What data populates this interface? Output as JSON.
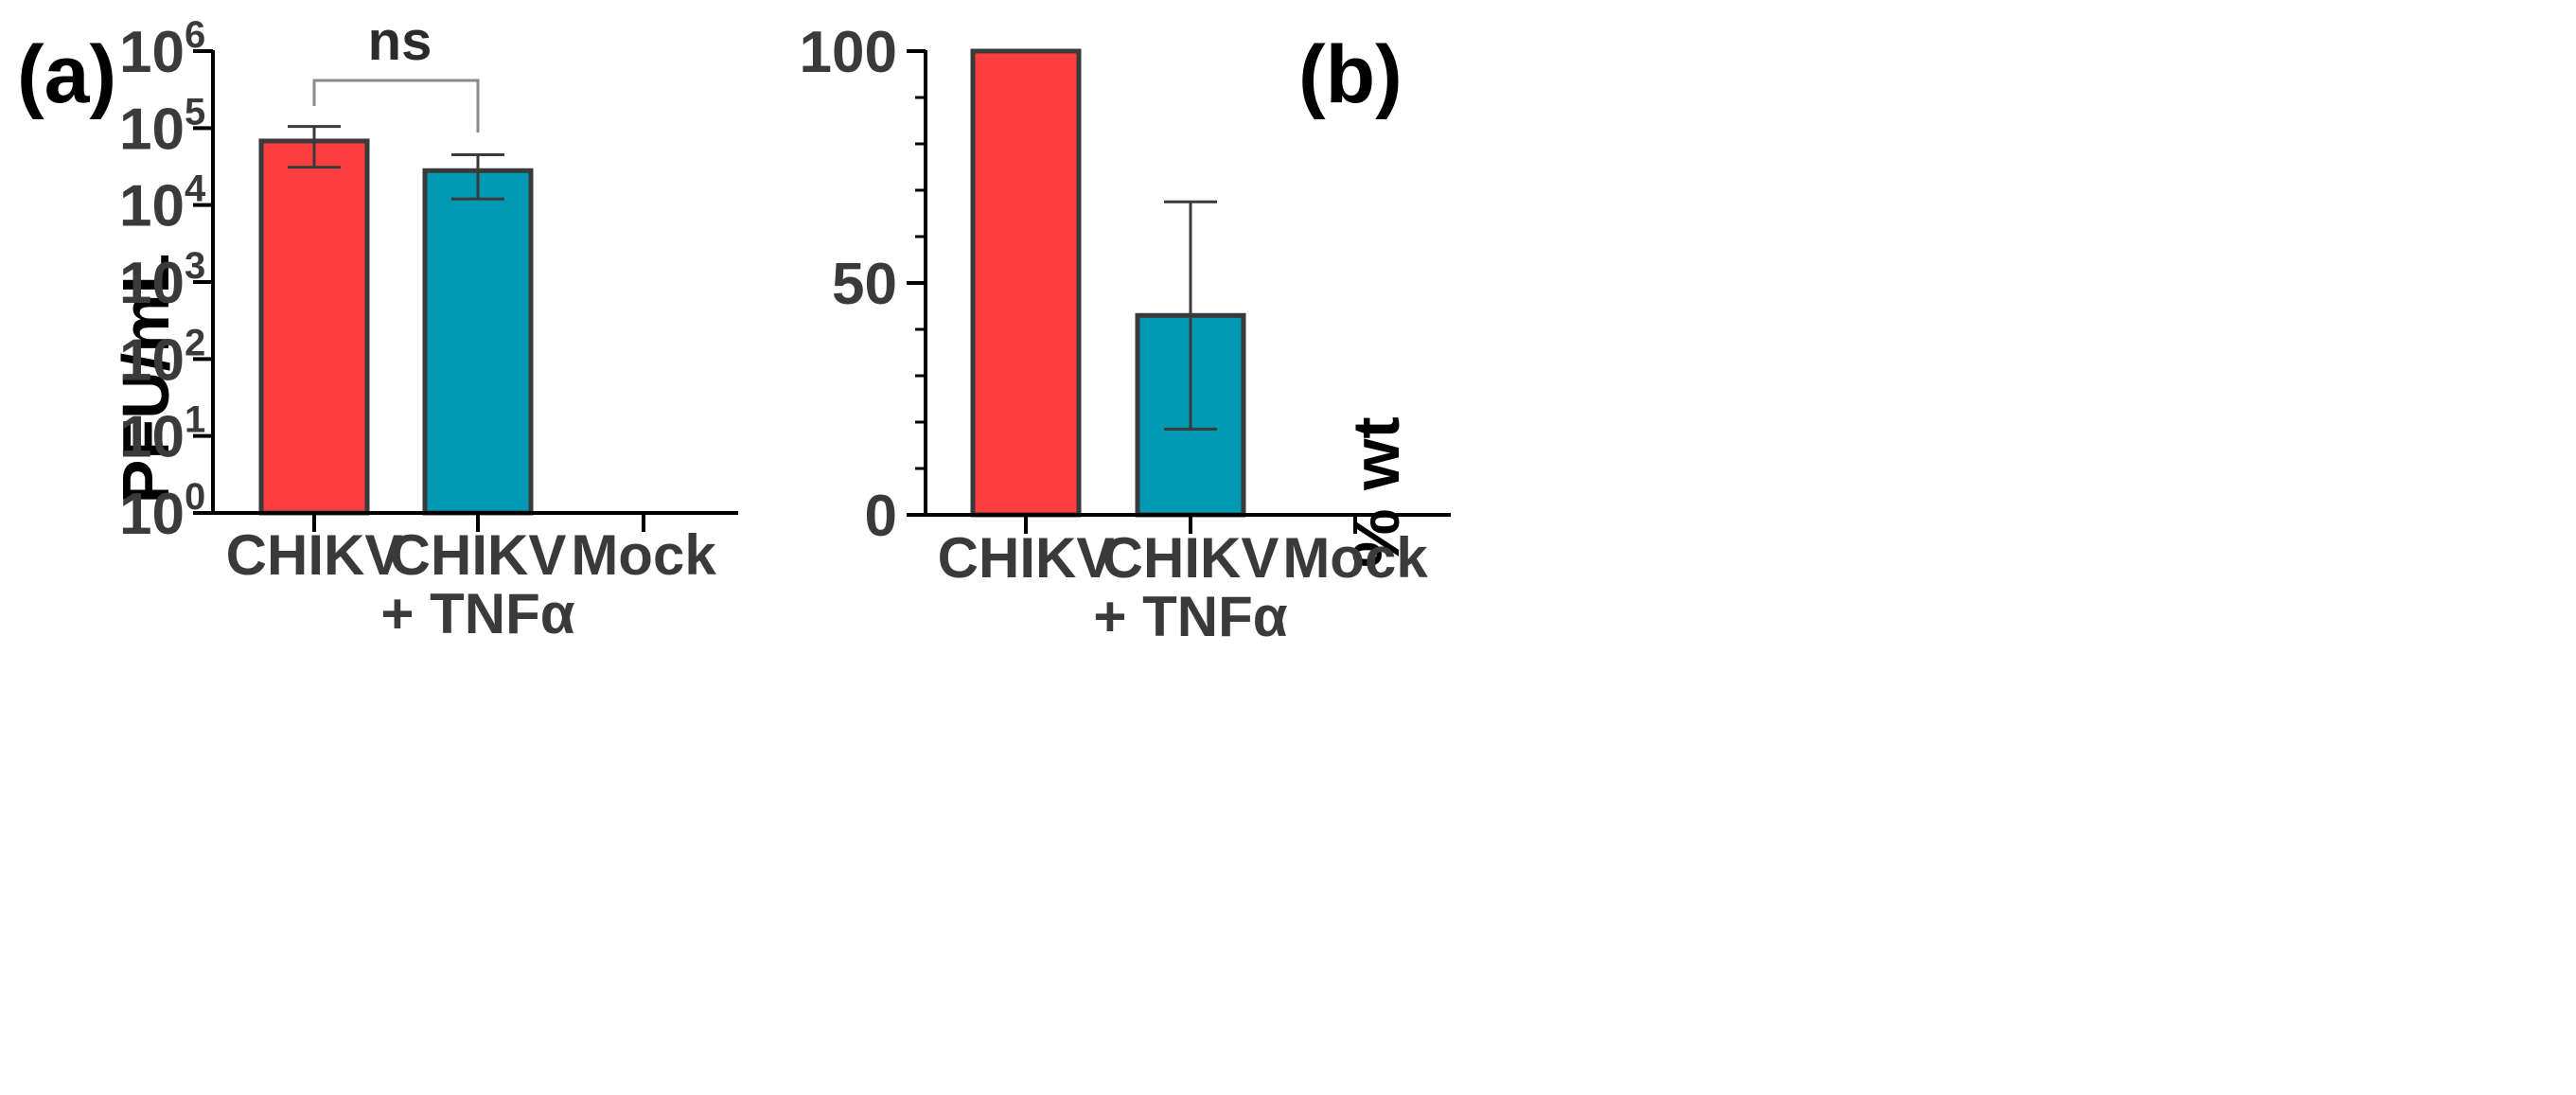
{
  "colors": {
    "chikv": "#FF3F3F",
    "chikv_tnf": "#0098B3",
    "bar_edge": "#3a3a3a",
    "axis": "#000000",
    "errorbar": "#3a3a3a",
    "bracket": "#8a8a8a"
  },
  "chart_data": [
    {
      "panel": "(a)",
      "type": "bar",
      "yscale": "log",
      "ylabel": "PFU/mL",
      "ylim": [
        1,
        1000000
      ],
      "ytick_base": "10",
      "ytick_exponents": [
        "0",
        "1",
        "2",
        "3",
        "4",
        "5",
        "6"
      ],
      "categories": [
        {
          "line1": "CHIKV",
          "line2": ""
        },
        {
          "line1": "CHIKV",
          "line2": "+ TNFα"
        },
        {
          "line1": "Mock",
          "line2": ""
        }
      ],
      "values": [
        68000,
        28000,
        null
      ],
      "error_low": [
        31000,
        12000,
        null
      ],
      "error_high": [
        105000,
        45000,
        null
      ],
      "bar_colors": [
        "#FF3F3F",
        "#0098B3",
        null
      ],
      "significance": {
        "label": "ns",
        "from": 0,
        "to": 1
      }
    },
    {
      "panel": "(b)",
      "type": "bar",
      "yscale": "linear",
      "ylabel": "% wt",
      "ylim": [
        0,
        100
      ],
      "yticks": [
        0,
        50,
        100
      ],
      "minor_step": 10,
      "categories": [
        {
          "line1": "CHIKV",
          "line2": ""
        },
        {
          "line1": "CHIKV",
          "line2": "+ TNFα"
        },
        {
          "line1": "Mock",
          "line2": ""
        }
      ],
      "values": [
        100,
        43,
        null
      ],
      "error_low": [
        null,
        18.5,
        null
      ],
      "error_high": [
        null,
        67.5,
        null
      ],
      "bar_colors": [
        "#FF3F3F",
        "#0098B3",
        null
      ]
    }
  ]
}
